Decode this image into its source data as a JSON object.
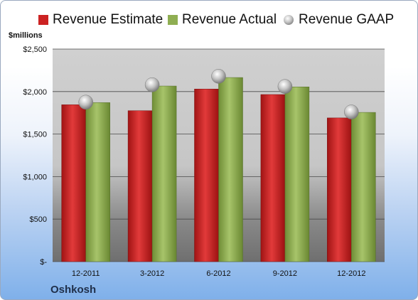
{
  "chart_data": {
    "type": "bar",
    "title": "",
    "ylabel": "$millions",
    "xlabel": "",
    "company": "Oshkosh",
    "categories": [
      "12-2011",
      "3-2012",
      "6-2012",
      "9-2012",
      "12-2012"
    ],
    "series": [
      {
        "name": "Revenue Estimate",
        "kind": "bar",
        "color": "#cc2222",
        "values": [
          1845,
          1775,
          2030,
          1965,
          1690
        ]
      },
      {
        "name": "Revenue Actual",
        "kind": "bar",
        "color": "#8fae52",
        "values": [
          1870,
          2065,
          2165,
          2055,
          1755
        ]
      },
      {
        "name": "Revenue GAAP",
        "kind": "marker",
        "color": "#b8b8b8",
        "values": [
          1875,
          2080,
          2180,
          2060,
          1760
        ]
      }
    ],
    "yticks": [
      "$-",
      "$500",
      "$1,000",
      "$1,500",
      "$2,000",
      "$2,500"
    ],
    "ytick_values": [
      0,
      500,
      1000,
      1500,
      2000,
      2500
    ],
    "ylim": [
      0,
      2500
    ],
    "grid": true,
    "legend": "top"
  }
}
